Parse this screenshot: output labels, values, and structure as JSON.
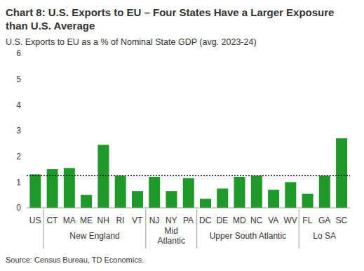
{
  "chart_data": {
    "type": "bar",
    "title": "Chart 8: U.S. Exports to EU – Four States Have a Larger Exposure than U.S. Average",
    "subtitle": "U.S. Exports to EU as a % of Nominal State GDP (avg. 2023-24)",
    "source": "Source: Census Bureau, TD Economics.",
    "categories": [
      "US",
      "CT",
      "MA",
      "ME",
      "NH",
      "RI",
      "VT",
      "NJ",
      "NY",
      "PA",
      "DC",
      "DE",
      "MD",
      "NC",
      "VA",
      "WV",
      "FL",
      "GA",
      "SC"
    ],
    "values": [
      1.3,
      1.5,
      1.55,
      0.5,
      2.45,
      1.25,
      0.65,
      1.2,
      0.65,
      1.15,
      0.35,
      0.75,
      1.2,
      1.25,
      0.7,
      1.0,
      0.55,
      1.25,
      2.7
    ],
    "groups": [
      {
        "label": "New England",
        "start": 1,
        "end": 6
      },
      {
        "label": "Mid Atlantic",
        "start": 7,
        "end": 9
      },
      {
        "label": "Upper South Atlantic",
        "start": 10,
        "end": 15
      },
      {
        "label": "Lo SA",
        "start": 16,
        "end": 18
      }
    ],
    "reference_line": 1.25,
    "color": "#1f9a2a",
    "ylim": [
      0,
      6
    ],
    "yticks": [
      0,
      1,
      2,
      3,
      4,
      5,
      6
    ],
    "grid": false
  }
}
